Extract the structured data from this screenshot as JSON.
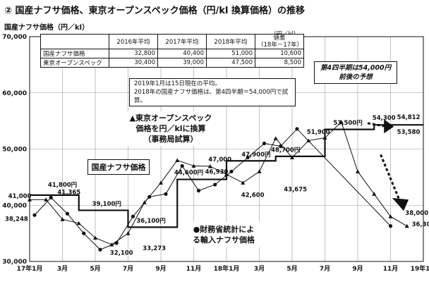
{
  "title": "② 国産ナフサ価格、東京オープンスペック価格（円/kl 換算価格）の推移",
  "unit_label": "国産ナフサ価格（円／kl）",
  "table": {
    "unit": "（円／kl）",
    "headers": [
      "",
      "2016年平均",
      "2017年平均",
      "2018年平均",
      "値差\n（18年－17年）"
    ],
    "rows": [
      {
        "name": "国産ナフサ価格",
        "values": [
          "32,800",
          "40,400",
          "51,000",
          "10,600"
        ]
      },
      {
        "name": "東京オープンスペック",
        "values": [
          "30,400",
          "39,000",
          "47,500",
          "8,500"
        ]
      }
    ]
  },
  "note": {
    "line1": "2019年1月は15日現在の平均。",
    "line2": "2018年の国産ナフサ価格は、第4四半期＝54,000円で試算。"
  },
  "callouts": {
    "tokyo_line1": "▲東京オープンスペック",
    "tokyo_line2": "価格を円／klに換算",
    "tokyo_line3": "（事務局試算）",
    "naphtha": "国産ナフサ価格",
    "mof_line1": "●財務省統計によ",
    "mof_line2": "る輸入ナフサ価格",
    "q4_line1": "第4四半期は54,000円",
    "q4_line2": "前後の予想"
  },
  "colors": {
    "line": "#111111",
    "grid": "#999999",
    "arrow": "#111111"
  },
  "chart_data": {
    "type": "line",
    "x_labels": [
      "17年1月",
      "3月",
      "5月",
      "7月",
      "9月",
      "11月",
      "18年1月",
      "3月",
      "5月",
      "7月",
      "9月",
      "11月",
      "19年1月"
    ],
    "ylim": [
      30000,
      70000
    ],
    "y_ticks": [
      "30,000",
      "40,000",
      "50,000",
      "60,000",
      "70,000"
    ],
    "grid": true,
    "series": [
      {
        "name": "国産ナフサ価格",
        "style": "step",
        "values": [
          41800,
          41800,
          41800,
          39100,
          39100,
          39100,
          36100,
          36100,
          36100,
          44600,
          44600,
          44600,
          47900,
          47900,
          47900,
          48700,
          48700,
          48700,
          53500,
          53500,
          53500,
          54300,
          54300,
          54300
        ]
      },
      {
        "name": "東京オープンスペック",
        "style": "triangle",
        "values": [
          41000,
          41000,
          37500,
          36800,
          34200,
          33000,
          35000,
          40500,
          44000,
          48000,
          47000,
          46930,
          45500,
          44000,
          46000,
          51900,
          48500,
          51500,
          52000,
          54812,
          46000,
          42000,
          38000,
          36300
        ]
      },
      {
        "name": "財務省統計による輸入ナフサ価格",
        "style": "circle",
        "values": [
          38248,
          41365,
          38500,
          35000,
          32100,
          33273,
          38000,
          41500,
          42000,
          47000,
          42600,
          43675,
          46000,
          48500,
          51000,
          50500,
          53580,
          36300
        ]
      }
    ],
    "data_labels": [
      "41,800円",
      "41,000",
      "41,365",
      "39,100円",
      "38,248",
      "36,100円",
      "32,100",
      "33,273",
      "44,600円",
      "47,000",
      "46,930",
      "47,900円",
      "42,600",
      "43,675",
      "48,700円",
      "51,900",
      "53,500円",
      "54,300",
      "54,812",
      "53,580",
      "38,000",
      "36,300"
    ]
  }
}
